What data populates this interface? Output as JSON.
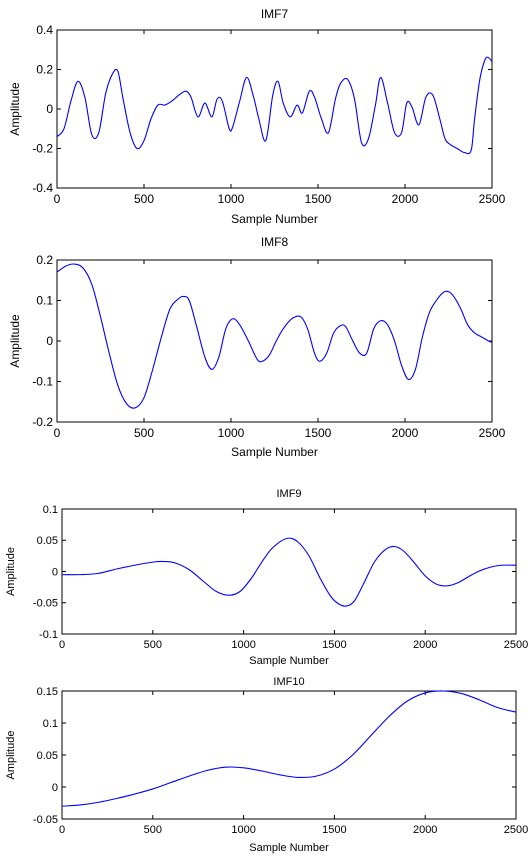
{
  "chart_data": [
    {
      "type": "line",
      "title": "IMF7",
      "xlabel": "Sample Number",
      "ylabel": "Amplitude",
      "xlim": [
        0,
        2500
      ],
      "ylim": [
        -0.4,
        0.4
      ],
      "xticks": [
        "0",
        "500",
        "1000",
        "1500",
        "2000",
        "2500"
      ],
      "yticks": [
        "-0.4",
        "-0.2",
        "0",
        "0.2",
        "0.4"
      ],
      "grid": false,
      "line_color": "#0000ff",
      "series": [
        {
          "x": [
            0,
            40,
            80,
            120,
            160,
            200,
            240,
            280,
            320,
            350,
            380,
            420,
            460,
            500,
            540,
            580,
            620,
            660,
            700,
            740,
            770,
            810,
            850,
            890,
            920,
            950,
            990,
            1010,
            1050,
            1090,
            1130,
            1160,
            1200,
            1240,
            1270,
            1300,
            1340,
            1380,
            1410,
            1450,
            1480,
            1520,
            1560,
            1600,
            1630,
            1670,
            1710,
            1750,
            1790,
            1830,
            1860,
            1900,
            1940,
            1980,
            2010,
            2040,
            2080,
            2120,
            2160,
            2200,
            2230,
            2260,
            2300,
            2340,
            2380,
            2400,
            2430,
            2460,
            2480,
            2500
          ],
          "y": [
            -0.14,
            -0.1,
            0.04,
            0.14,
            0.06,
            -0.13,
            -0.12,
            0.08,
            0.18,
            0.19,
            0.05,
            -0.12,
            -0.2,
            -0.16,
            -0.05,
            0.02,
            0.02,
            0.04,
            0.07,
            0.09,
            0.06,
            -0.04,
            0.03,
            -0.04,
            0.05,
            0.04,
            -0.1,
            -0.09,
            0.04,
            0.16,
            0.06,
            -0.05,
            -0.16,
            0.07,
            0.14,
            0.03,
            -0.04,
            0.02,
            -0.02,
            0.09,
            0.06,
            -0.05,
            -0.12,
            0.05,
            0.13,
            0.15,
            0.05,
            -0.17,
            -0.15,
            0.02,
            0.16,
            0.03,
            -0.12,
            -0.12,
            0.03,
            0.01,
            -0.08,
            0.06,
            0.07,
            -0.05,
            -0.15,
            -0.18,
            -0.2,
            -0.22,
            -0.21,
            -0.05,
            0.15,
            0.25,
            0.26,
            0.24
          ]
        }
      ]
    },
    {
      "type": "line",
      "title": "IMF8",
      "xlabel": "Sample Number",
      "ylabel": "Amplitude",
      "xlim": [
        0,
        2500
      ],
      "ylim": [
        -0.2,
        0.2
      ],
      "xticks": [
        "0",
        "500",
        "1000",
        "1500",
        "2000",
        "2500"
      ],
      "yticks": [
        "-0.2",
        "-0.1",
        "0",
        "0.1",
        "0.2"
      ],
      "grid": false,
      "line_color": "#0000ff",
      "series": [
        {
          "x": [
            0,
            50,
            100,
            150,
            200,
            250,
            300,
            350,
            400,
            450,
            500,
            550,
            600,
            650,
            700,
            730,
            760,
            800,
            850,
            890,
            930,
            970,
            1010,
            1050,
            1100,
            1150,
            1180,
            1220,
            1260,
            1300,
            1350,
            1400,
            1440,
            1480,
            1510,
            1550,
            1590,
            1630,
            1660,
            1700,
            1740,
            1780,
            1820,
            1860,
            1900,
            1940,
            1980,
            2020,
            2060,
            2100,
            2140,
            2180,
            2220,
            2250,
            2280,
            2320,
            2360,
            2400,
            2440,
            2480,
            2500
          ],
          "y": [
            0.17,
            0.185,
            0.19,
            0.18,
            0.14,
            0.06,
            -0.03,
            -0.11,
            -0.155,
            -0.165,
            -0.14,
            -0.07,
            0.01,
            0.08,
            0.105,
            0.11,
            0.1,
            0.04,
            -0.04,
            -0.07,
            -0.04,
            0.03,
            0.055,
            0.04,
            0.0,
            -0.045,
            -0.05,
            -0.035,
            0.0,
            0.03,
            0.055,
            0.06,
            0.03,
            -0.03,
            -0.05,
            -0.03,
            0.02,
            0.038,
            0.035,
            0.0,
            -0.03,
            -0.03,
            0.03,
            0.05,
            0.04,
            0.0,
            -0.06,
            -0.095,
            -0.07,
            0.01,
            0.07,
            0.1,
            0.12,
            0.122,
            0.11,
            0.08,
            0.04,
            0.02,
            0.01,
            0.0,
            -0.003
          ]
        }
      ]
    },
    {
      "type": "line",
      "title": "IMF9",
      "xlabel": "Sample Number",
      "ylabel": "Amplitude",
      "xlim": [
        0,
        2500
      ],
      "ylim": [
        -0.1,
        0.1
      ],
      "xticks": [
        "0",
        "500",
        "1000",
        "1500",
        "2000",
        "2500"
      ],
      "yticks": [
        "-0.1",
        "-0.05",
        "0",
        "0.05",
        "0.1"
      ],
      "grid": false,
      "line_color": "#0000ff",
      "series": [
        {
          "x": [
            0,
            100,
            200,
            300,
            400,
            500,
            560,
            620,
            700,
            780,
            850,
            920,
            980,
            1040,
            1100,
            1160,
            1240,
            1300,
            1360,
            1420,
            1480,
            1530,
            1570,
            1610,
            1660,
            1720,
            1780,
            1830,
            1880,
            1940,
            2000,
            2060,
            2120,
            2180,
            2240,
            2300,
            2360,
            2420,
            2500
          ],
          "y": [
            -0.005,
            -0.005,
            -0.003,
            0.004,
            0.01,
            0.015,
            0.016,
            0.014,
            0.003,
            -0.016,
            -0.032,
            -0.038,
            -0.032,
            -0.012,
            0.015,
            0.038,
            0.053,
            0.047,
            0.025,
            -0.01,
            -0.04,
            -0.053,
            -0.055,
            -0.047,
            -0.02,
            0.015,
            0.035,
            0.04,
            0.033,
            0.014,
            -0.007,
            -0.02,
            -0.023,
            -0.018,
            -0.008,
            0.001,
            0.007,
            0.01,
            0.01
          ]
        }
      ]
    },
    {
      "type": "line",
      "title": "IMF10",
      "xlabel": "Sample Number",
      "ylabel": "Amplitude",
      "xlim": [
        0,
        2500
      ],
      "ylim": [
        -0.05,
        0.15
      ],
      "xticks": [
        "0",
        "500",
        "1000",
        "1500",
        "2000",
        "2500"
      ],
      "yticks": [
        "-0.05",
        "0",
        "0.05",
        "0.1",
        "0.15"
      ],
      "grid": false,
      "line_color": "#0000ff",
      "series": [
        {
          "x": [
            0,
            100,
            200,
            300,
            400,
            500,
            600,
            700,
            800,
            900,
            1000,
            1100,
            1200,
            1300,
            1400,
            1500,
            1600,
            1700,
            1800,
            1900,
            2000,
            2100,
            2200,
            2300,
            2400,
            2500
          ],
          "y": [
            -0.03,
            -0.028,
            -0.024,
            -0.018,
            -0.011,
            -0.003,
            0.007,
            0.017,
            0.026,
            0.031,
            0.03,
            0.025,
            0.019,
            0.015,
            0.017,
            0.028,
            0.05,
            0.08,
            0.11,
            0.134,
            0.147,
            0.15,
            0.146,
            0.136,
            0.124,
            0.117
          ]
        }
      ]
    }
  ]
}
